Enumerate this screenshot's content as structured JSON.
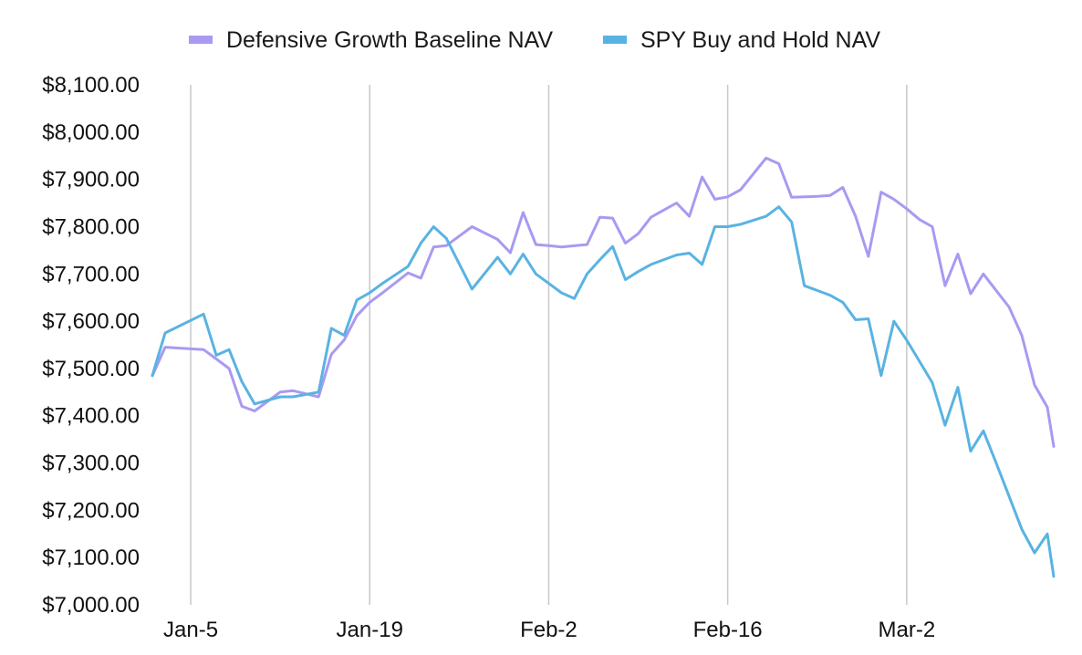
{
  "chart_data": {
    "type": "line",
    "title": "",
    "xlabel": "",
    "ylabel": "",
    "ylim": [
      7000,
      8100
    ],
    "y_ticks": [
      8100,
      8000,
      7900,
      7800,
      7700,
      7600,
      7500,
      7400,
      7300,
      7200,
      7100,
      7000
    ],
    "y_tick_labels": [
      "$8,100.00",
      "$8,000.00",
      "$7,900.00",
      "$7,800.00",
      "$7,700.00",
      "$7,600.00",
      "$7,500.00",
      "$7,400.00",
      "$7,300.00",
      "$7,200.00",
      "$7,100.00",
      "$7,000.00"
    ],
    "x_domain": [
      -3,
      67.5
    ],
    "x_ticks": [
      0,
      14,
      28,
      42,
      56
    ],
    "x_tick_labels": [
      "Jan-5",
      "Jan-19",
      "Feb-2",
      "Feb-16",
      "Mar-2"
    ],
    "grid": "vertical",
    "legend_position": "top-center",
    "series": [
      {
        "name": "Defensive Growth Baseline NAV",
        "color": "#aa99f2",
        "x": [
          -3,
          -2,
          1,
          2,
          3,
          4,
          5,
          7,
          8,
          10,
          11,
          12,
          13,
          14,
          15,
          17,
          18,
          19,
          20,
          22,
          24,
          25,
          26,
          27,
          28,
          29,
          31,
          32,
          33,
          34,
          35,
          36,
          38,
          39,
          40,
          41,
          42,
          43,
          45,
          46,
          47,
          48,
          49,
          50,
          51,
          52,
          53,
          54,
          55,
          56,
          57,
          58,
          59,
          60,
          61,
          62,
          63,
          64,
          65,
          66,
          67,
          67.5
        ],
        "values": [
          7485,
          7545,
          7540,
          7520,
          7500,
          7420,
          7410,
          7450,
          7453,
          7440,
          7530,
          7560,
          7612,
          7640,
          7660,
          7702,
          7691,
          7757,
          7760,
          7800,
          7773,
          7745,
          7830,
          7762,
          7760,
          7757,
          7762,
          7820,
          7818,
          7765,
          7785,
          7820,
          7850,
          7822,
          7905,
          7858,
          7863,
          7878,
          7945,
          7933,
          7862,
          7863,
          7864,
          7866,
          7883,
          7822,
          7737,
          7873,
          7858,
          7838,
          7815,
          7800,
          7675,
          7742,
          7658,
          7700,
          7665,
          7630,
          7570,
          7465,
          7418,
          7335
        ]
      },
      {
        "name": "SPY Buy and Hold NAV",
        "color": "#59b3e2",
        "x": [
          -3,
          -2,
          1,
          2,
          3,
          4,
          5,
          7,
          8,
          10,
          11,
          12,
          13,
          14,
          15,
          17,
          18,
          19,
          20,
          22,
          24,
          25,
          26,
          27,
          28,
          29,
          30,
          31,
          32,
          33,
          34,
          35,
          36,
          38,
          39,
          40,
          41,
          42,
          43,
          45,
          46,
          47,
          48,
          49,
          50,
          51,
          52,
          53,
          54,
          55,
          56,
          57,
          58,
          59,
          60,
          61,
          62,
          63,
          64,
          65,
          66,
          67,
          67.5
        ],
        "values": [
          7485,
          7575,
          7615,
          7528,
          7540,
          7472,
          7425,
          7440,
          7440,
          7450,
          7585,
          7570,
          7645,
          7660,
          7680,
          7716,
          7765,
          7800,
          7775,
          7668,
          7735,
          7700,
          7742,
          7700,
          7680,
          7660,
          7648,
          7700,
          7730,
          7758,
          7688,
          7705,
          7720,
          7740,
          7744,
          7720,
          7800,
          7800,
          7805,
          7822,
          7842,
          7810,
          7675,
          7665,
          7655,
          7640,
          7603,
          7605,
          7485,
          7600,
          7560,
          7515,
          7470,
          7380,
          7460,
          7325,
          7368,
          7300,
          7230,
          7160,
          7110,
          7150,
          7060
        ]
      }
    ]
  }
}
